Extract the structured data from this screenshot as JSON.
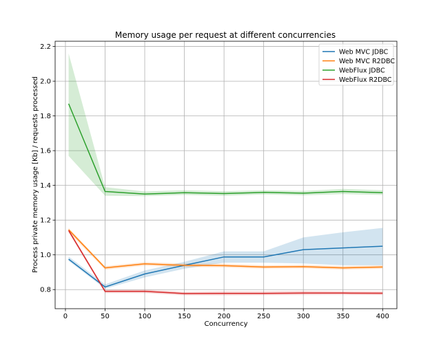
{
  "chart_data": {
    "type": "line",
    "title": "Memory usage per request at different concurrencies",
    "xlabel": "Concurrency",
    "ylabel": "Process private memory usage [Kb] / requests processed",
    "x": [
      4,
      50,
      100,
      150,
      200,
      250,
      300,
      350,
      400
    ],
    "xlim": [
      -13,
      418
    ],
    "ylim": [
      0.69,
      2.23
    ],
    "xticks": [
      0,
      50,
      100,
      150,
      200,
      250,
      300,
      350,
      400
    ],
    "yticks": [
      0.8,
      1.0,
      1.2,
      1.4,
      1.6,
      1.8,
      2.0,
      2.2
    ],
    "ytick_labels": [
      "0.8",
      "1.0",
      "1.2",
      "1.4",
      "1.6",
      "1.8",
      "2.0",
      "2.2"
    ],
    "grid": true,
    "legend_position": "top-right",
    "series": [
      {
        "name": "Web MVC JDBC",
        "color": "#1f77b4",
        "values": [
          0.975,
          0.815,
          0.89,
          0.94,
          0.988,
          0.988,
          1.03,
          1.04,
          1.05
        ],
        "lower": [
          0.965,
          0.805,
          0.87,
          0.92,
          0.955,
          0.955,
          0.95,
          0.94,
          0.94
        ],
        "upper": [
          0.99,
          0.83,
          0.91,
          0.96,
          1.02,
          1.02,
          1.1,
          1.13,
          1.155
        ]
      },
      {
        "name": "Web MVC R2DBC",
        "color": "#ff7f0e",
        "values": [
          1.145,
          0.925,
          0.948,
          0.94,
          0.938,
          0.93,
          0.932,
          0.925,
          0.93
        ],
        "lower": [
          1.13,
          0.915,
          0.938,
          0.93,
          0.928,
          0.92,
          0.922,
          0.915,
          0.92
        ],
        "upper": [
          1.155,
          0.935,
          0.958,
          0.95,
          0.948,
          0.94,
          0.942,
          0.935,
          0.94
        ]
      },
      {
        "name": "WebFlux JDBC",
        "color": "#2ca02c",
        "values": [
          1.87,
          1.365,
          1.35,
          1.358,
          1.353,
          1.36,
          1.355,
          1.365,
          1.358
        ],
        "lower": [
          1.57,
          1.34,
          1.338,
          1.345,
          1.34,
          1.348,
          1.343,
          1.35,
          1.345
        ],
        "upper": [
          2.16,
          1.39,
          1.365,
          1.372,
          1.366,
          1.372,
          1.368,
          1.38,
          1.372
        ]
      },
      {
        "name": "WebFlux R2DBC",
        "color": "#d62728",
        "values": [
          1.14,
          0.79,
          0.79,
          0.777,
          0.778,
          0.778,
          0.78,
          0.78,
          0.779
        ],
        "lower": [
          1.13,
          0.78,
          0.78,
          0.767,
          0.767,
          0.768,
          0.769,
          0.77,
          0.769
        ],
        "upper": [
          1.15,
          0.8,
          0.8,
          0.787,
          0.79,
          0.79,
          0.792,
          0.79,
          0.789
        ]
      }
    ]
  }
}
